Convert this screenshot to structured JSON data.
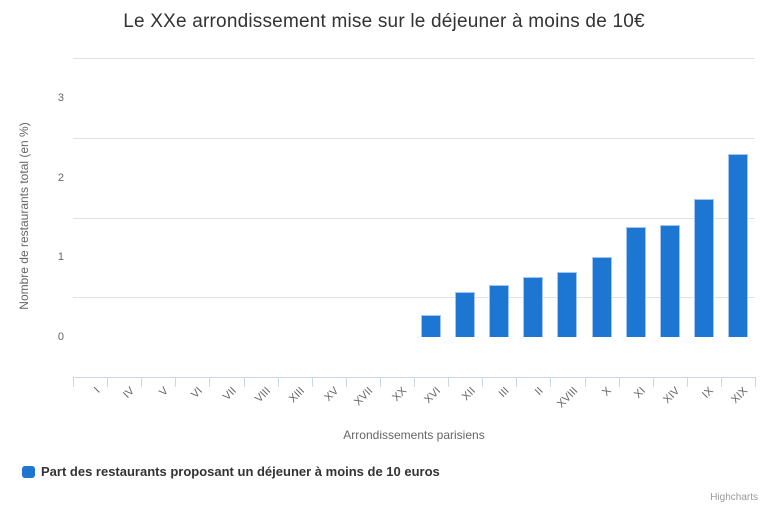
{
  "chart_data": {
    "type": "bar",
    "title": "Le XXe arrondissement mise sur le déjeuner à moins de 10€",
    "xlabel": "Arrondissements parisiens",
    "ylabel": "Nombre de restaurants total (en %)",
    "categories": [
      "I",
      "IV",
      "V",
      "VI",
      "VII",
      "VIII",
      "XIII",
      "XV",
      "XVII",
      "XX",
      "XVI",
      "XII",
      "III",
      "II",
      "XVIII",
      "X",
      "XI",
      "XIV",
      "IX",
      "XIX"
    ],
    "series": [
      {
        "name": "Part des restaurants proposant un déjeuner à moins de 10 euros",
        "values": [
          0,
          0,
          0,
          0,
          0,
          0,
          0,
          0,
          0,
          0,
          0.27,
          0.56,
          0.65,
          0.75,
          0.82,
          1.0,
          1.38,
          1.4,
          1.73,
          2.3
        ]
      }
    ],
    "y_ticks": [
      0,
      1,
      2,
      3
    ],
    "gridline_values": [
      0.5,
      1.5,
      2.5,
      3.5
    ],
    "ylim": [
      -0.5,
      3.5
    ],
    "grid": true,
    "legend_position": "bottom-left"
  },
  "colors": {
    "bar": "#1e76d3",
    "bar_border": "#a3c6ee",
    "grid": "#e2e2e2",
    "axis_line": "#ccd6eb",
    "title_text": "#333333",
    "axis_text": "#666666",
    "legend_text": "#333333",
    "credits_text": "#9a9a9a"
  },
  "credits": "Highcharts"
}
